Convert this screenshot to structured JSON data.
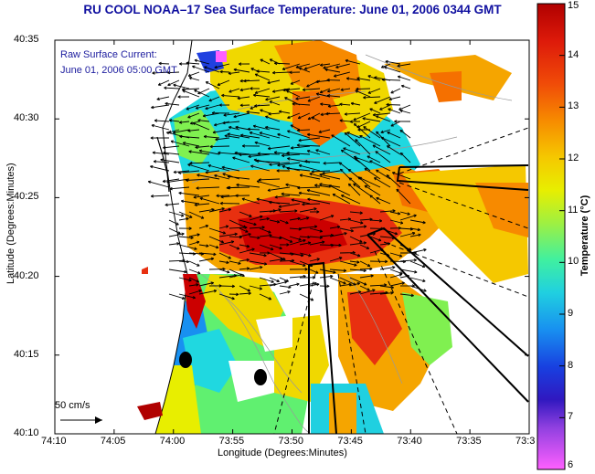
{
  "title": "RU COOL  NOAA–17  Sea Surface Temperature:  June 01, 2006 0344 GMT",
  "current_label": "Raw Surface Current:",
  "current_time": "June 01, 2006 05:00 GMT",
  "scale_label": "50 cm/s",
  "axes": {
    "xlabel": "Longitude (Degrees:Minutes)",
    "ylabel": "Latitude (Degrees:Minutes)",
    "x_ticks": [
      "74:10",
      "74:05",
      "74:00",
      "73:55",
      "73:50",
      "73:45",
      "73:40",
      "73:35",
      "73:3"
    ],
    "y_ticks": [
      "40:35",
      "40:30",
      "40:25",
      "40:20",
      "40:15",
      "40:10"
    ]
  },
  "colorbar": {
    "label": "Temperature (°C)",
    "min": 6,
    "max": 15,
    "ticks": [
      "15",
      "14",
      "13",
      "12",
      "11",
      "10",
      "9",
      "8",
      "7",
      "6"
    ],
    "colors": [
      "#cc0000",
      "#e83010",
      "#f56a00",
      "#f5a500",
      "#f0d800",
      "#c0f020",
      "#60f070",
      "#20e0c0",
      "#20b0f0",
      "#2060f0",
      "#2020d0",
      "#8040e0",
      "#e040f0",
      "#ff60ff"
    ]
  }
}
